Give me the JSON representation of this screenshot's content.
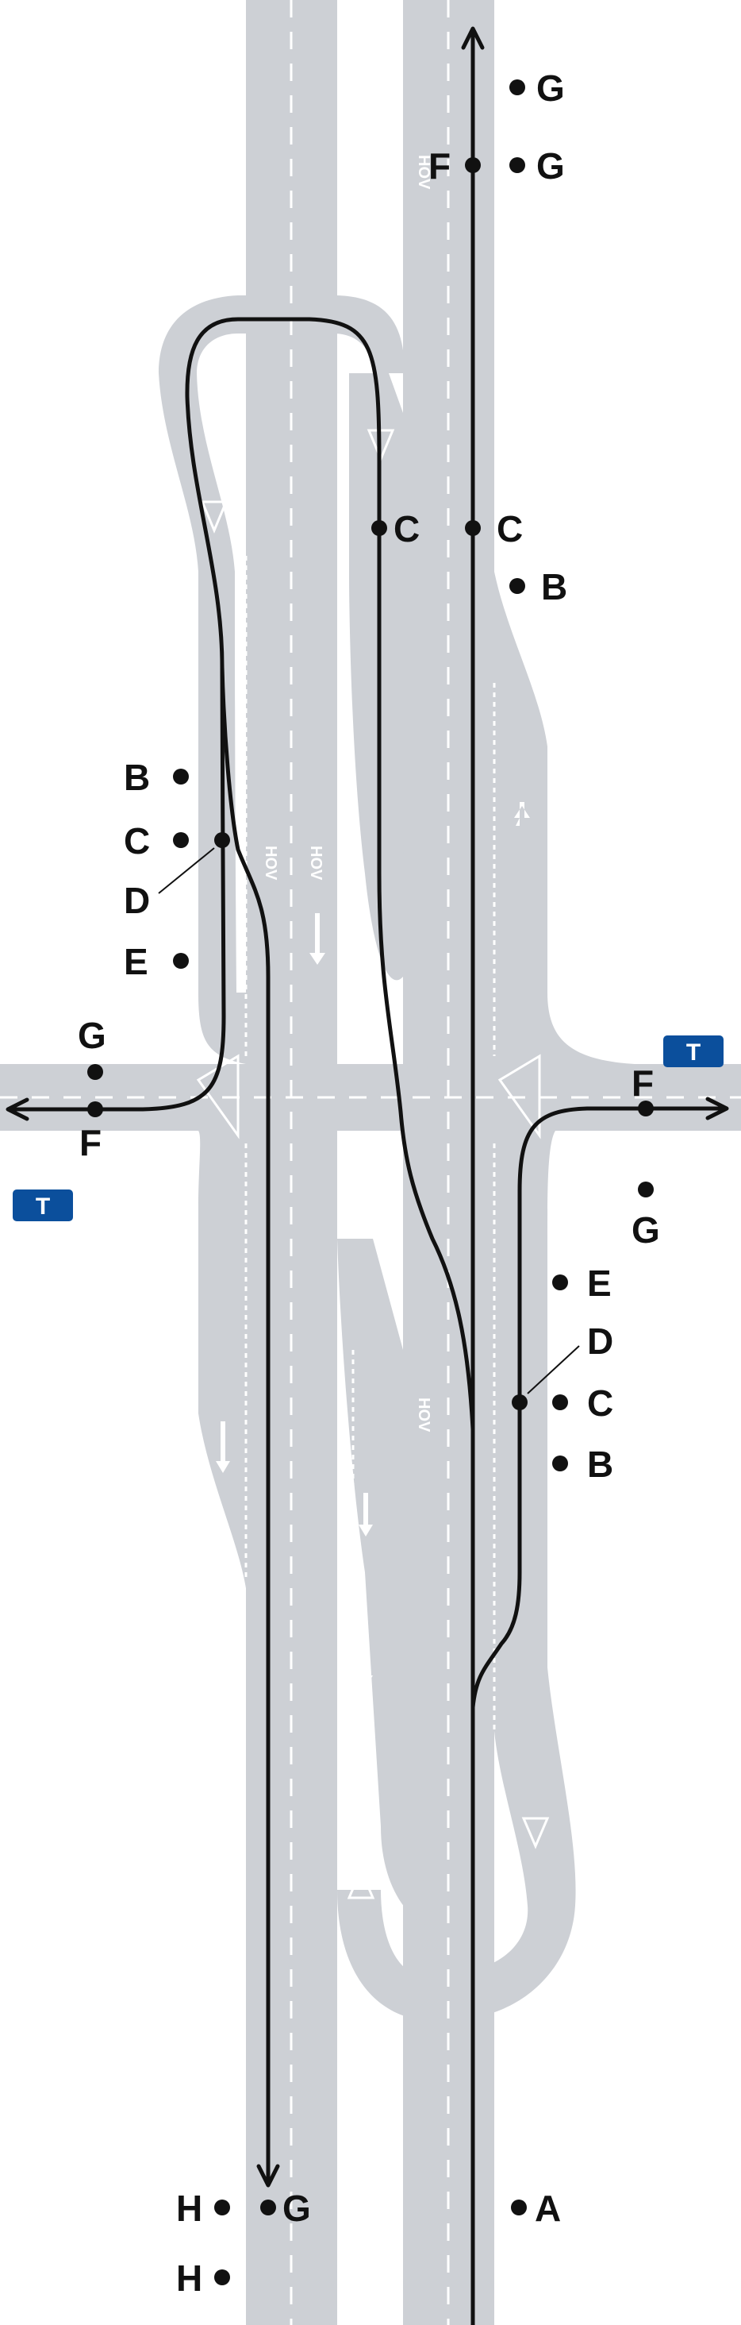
{
  "colors": {
    "road": "#cdd0d5",
    "route": "#111111",
    "marking": "#ffffff",
    "sign_bg": "#0b4f9c",
    "sign_text": "#ffffff"
  },
  "signs": [
    {
      "id": "sign-east",
      "text": "T"
    },
    {
      "id": "sign-west",
      "text": "T"
    }
  ],
  "pavement_text": {
    "hov_1": "HOV",
    "hov_2": "HOV",
    "hov_3": "HOV",
    "hov_4": "HOV"
  },
  "labels": {
    "top_G1": "G",
    "top_F": "F",
    "top_G2": "G",
    "mid_C1": "C",
    "mid_C2": "C",
    "mid_B": "B",
    "west_B": "B",
    "west_C": "C",
    "west_D": "D",
    "west_E": "E",
    "west_G": "G",
    "west_F": "F",
    "east_F": "F",
    "east_G": "G",
    "east_E": "E",
    "east_D": "D",
    "east_C": "C",
    "east_B": "B",
    "bottom_H1": "H",
    "bottom_G": "G",
    "bottom_A": "A",
    "bottom_H2": "H"
  },
  "icons": {
    "route_arrow": "arrowhead",
    "lane_arrow": "lane-arrow",
    "yield": "yield-triangle"
  }
}
